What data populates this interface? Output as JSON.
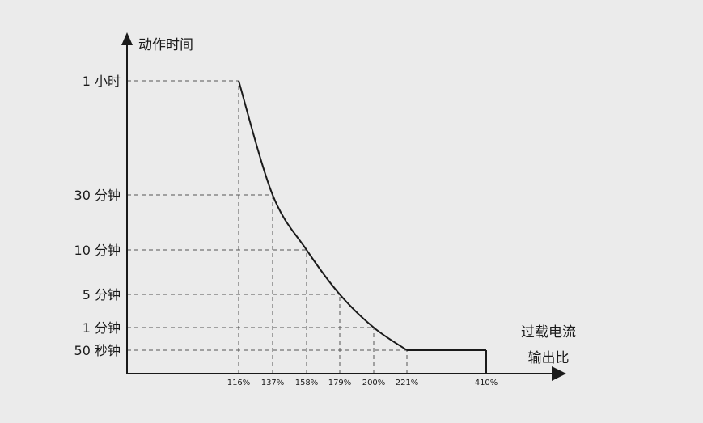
{
  "chart_data": {
    "type": "line",
    "y_title": "动作时间",
    "x_title_lines": [
      "过载电流",
      "输出比"
    ],
    "y_levels": [
      {
        "label": "1 小时",
        "seconds": 3600
      },
      {
        "label": "30 分钟",
        "seconds": 1800
      },
      {
        "label": "10 分钟",
        "seconds": 600
      },
      {
        "label": "5 分钟",
        "seconds": 300
      },
      {
        "label": "1 分钟",
        "seconds": 60
      },
      {
        "label": "50 秒钟",
        "seconds": 50
      }
    ],
    "x_ticks": [
      "116%",
      "137%",
      "158%",
      "179%",
      "200%",
      "221%",
      "410%"
    ],
    "points": [
      {
        "x": "116%",
        "y": "1 小时"
      },
      {
        "x": "137%",
        "y": "30 分钟"
      },
      {
        "x": "158%",
        "y": "10 分钟"
      },
      {
        "x": "179%",
        "y": "5 分钟"
      },
      {
        "x": "200%",
        "y": "1 分钟"
      },
      {
        "x": "221%",
        "y": "50 秒钟"
      },
      {
        "x": "410%",
        "y": "50 秒钟"
      }
    ],
    "line_color": "#1a1a1a",
    "guide_color": "#555555",
    "grid": false
  }
}
